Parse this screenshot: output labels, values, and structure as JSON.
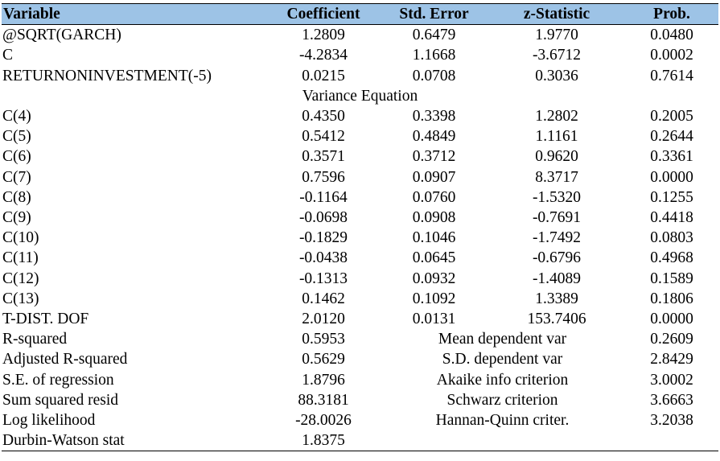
{
  "headers": [
    "Variable",
    "Coefficient",
    "Std. Error",
    "z-Statistic",
    "Prob."
  ],
  "mean_rows": [
    [
      "@SQRT(GARCH)",
      "1.2809",
      "0.6479",
      "1.9770",
      "0.0480"
    ],
    [
      "C",
      "-4.2834",
      "1.1668",
      "-3.6712",
      "0.0002"
    ],
    [
      "RETURNONINVESTMENT(-5)",
      "0.0215",
      "0.0708",
      "0.3036",
      "0.7614"
    ]
  ],
  "variance_title": "Variance Equation",
  "variance_rows": [
    [
      "C(4)",
      "0.4350",
      "0.3398",
      "1.2802",
      "0.2005"
    ],
    [
      "C(5)",
      "0.5412",
      "0.4849",
      "1.1161",
      "0.2644"
    ],
    [
      "C(6)",
      "0.3571",
      "0.3712",
      "0.9620",
      "0.3361"
    ],
    [
      "C(7)",
      "0.7596",
      "0.0907",
      "8.3717",
      "0.0000"
    ],
    [
      "C(8)",
      "-0.1164",
      "0.0760",
      "-1.5320",
      "0.1255"
    ],
    [
      "C(9)",
      "-0.0698",
      "0.0908",
      "-0.7691",
      "0.4418"
    ],
    [
      "C(10)",
      "-0.1829",
      "0.1046",
      "-1.7492",
      "0.0803"
    ],
    [
      "C(11)",
      "-0.0438",
      "0.0645",
      "-0.6796",
      "0.4968"
    ],
    [
      "C(12)",
      "-0.1313",
      "0.0932",
      "-1.4089",
      "0.1589"
    ],
    [
      "C(13)",
      "0.1462",
      "0.1092",
      "1.3389",
      "0.1806"
    ],
    [
      "T-DIST. DOF",
      "2.0120",
      "0.0131",
      "153.7406",
      "0.0000"
    ]
  ],
  "stats_rows": [
    [
      "R-squared",
      "0.5953",
      "Mean dependent var",
      "0.2609"
    ],
    [
      "Adjusted R-squared",
      "0.5629",
      "S.D. dependent var",
      "2.8429"
    ],
    [
      "S.E. of regression",
      "1.8796",
      "Akaike info criterion",
      "3.0002"
    ],
    [
      "Sum squared resid",
      "88.3181",
      "Schwarz criterion",
      "3.6663"
    ],
    [
      "Log likelihood",
      "-28.0026",
      "Hannan-Quinn criter.",
      "3.2038"
    ],
    [
      "Durbin-Watson stat",
      "1.8375",
      "",
      ""
    ]
  ]
}
